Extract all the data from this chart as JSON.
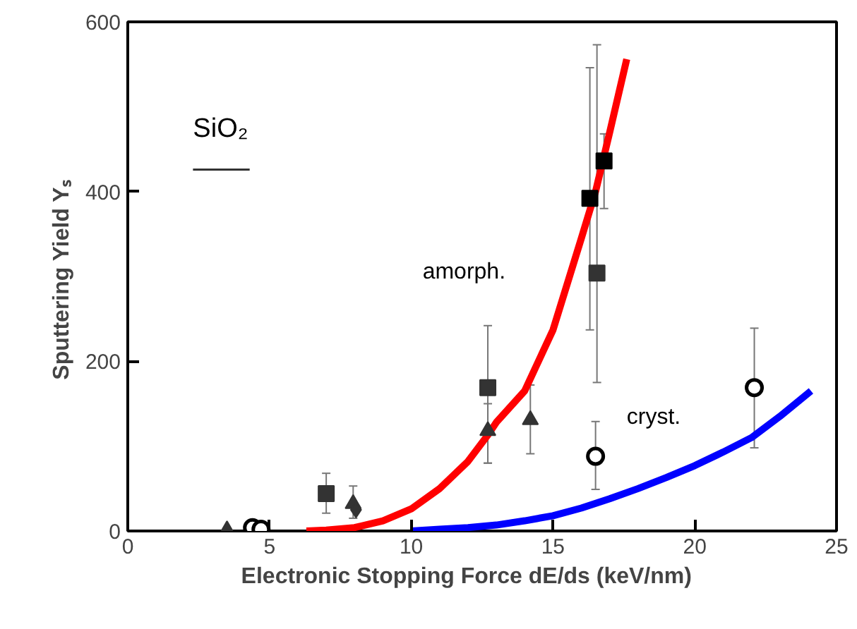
{
  "chart_data": {
    "type": "scatter",
    "xlabel": "Electronic  Stopping  Force   dE/ds  (keV/nm)",
    "ylabel": "Sputtering Yield  Yₛ",
    "xlim": [
      0,
      25
    ],
    "ylim": [
      0,
      600
    ],
    "xticks": [
      0,
      5,
      10,
      15,
      20,
      25
    ],
    "yticks": [
      0,
      200,
      400,
      600
    ],
    "grid": false,
    "series": [
      {
        "type": "line",
        "color": "#ff0000",
        "marker": "none",
        "line_style": "solid",
        "x": [
          6.3,
          7,
          8,
          9,
          10,
          11,
          12,
          12.7,
          13,
          14,
          15,
          16,
          16.5,
          17,
          17.6
        ],
        "values": [
          0,
          1,
          4,
          12,
          26,
          50,
          82,
          113,
          128,
          165,
          237,
          345,
          400,
          470,
          556
        ]
      },
      {
        "type": "line",
        "color": "#0000ff",
        "marker": "none",
        "line_style": "solid",
        "x": [
          10,
          11,
          12,
          13,
          14,
          15,
          16,
          17,
          18,
          19,
          20,
          21,
          22,
          23,
          24.1
        ],
        "values": [
          0,
          2,
          4,
          7,
          12,
          18,
          27,
          38,
          50,
          63,
          77,
          93,
          110,
          135,
          165
        ]
      },
      {
        "color": "#333333",
        "marker": "square",
        "x": [
          7.0,
          12.7,
          16.55
        ],
        "values": [
          44,
          169,
          304
        ],
        "errors": [
          [
            21,
            68
          ],
          [
            80,
            242
          ],
          [
            175,
            573
          ]
        ]
      },
      {
        "type": "scatter",
        "color": "#000000",
        "marker": "square",
        "x": [
          16.3,
          16.8
        ],
        "values": [
          392,
          436
        ],
        "errors": [
          [
            237,
            546
          ],
          [
            380,
            468
          ]
        ]
      },
      {
        "type": "scatter",
        "color": "#333333",
        "marker": "triangle",
        "x": [
          3.5,
          7.95,
          12.7,
          14.2
        ],
        "values": [
          1,
          32,
          118,
          131
        ],
        "errors": [
          null,
          [
            15,
            53
          ],
          [
            80,
            150
          ],
          [
            91,
            172
          ]
        ]
      },
      {
        "type": "scatter",
        "color": "#333333",
        "marker": "diamond",
        "x": [
          8.05
        ],
        "values": [
          25
        ]
      },
      {
        "type": "scatter",
        "color": "#000000",
        "marker": "circle",
        "x": [
          4.4,
          4.7,
          16.5,
          22.1
        ],
        "values": [
          4,
          2,
          88,
          169
        ],
        "errors": [
          null,
          null,
          [
            49,
            129
          ],
          [
            98,
            239
          ]
        ]
      }
    ],
    "annotations": [
      "SiO₂",
      "amorph.",
      "cryst."
    ]
  }
}
